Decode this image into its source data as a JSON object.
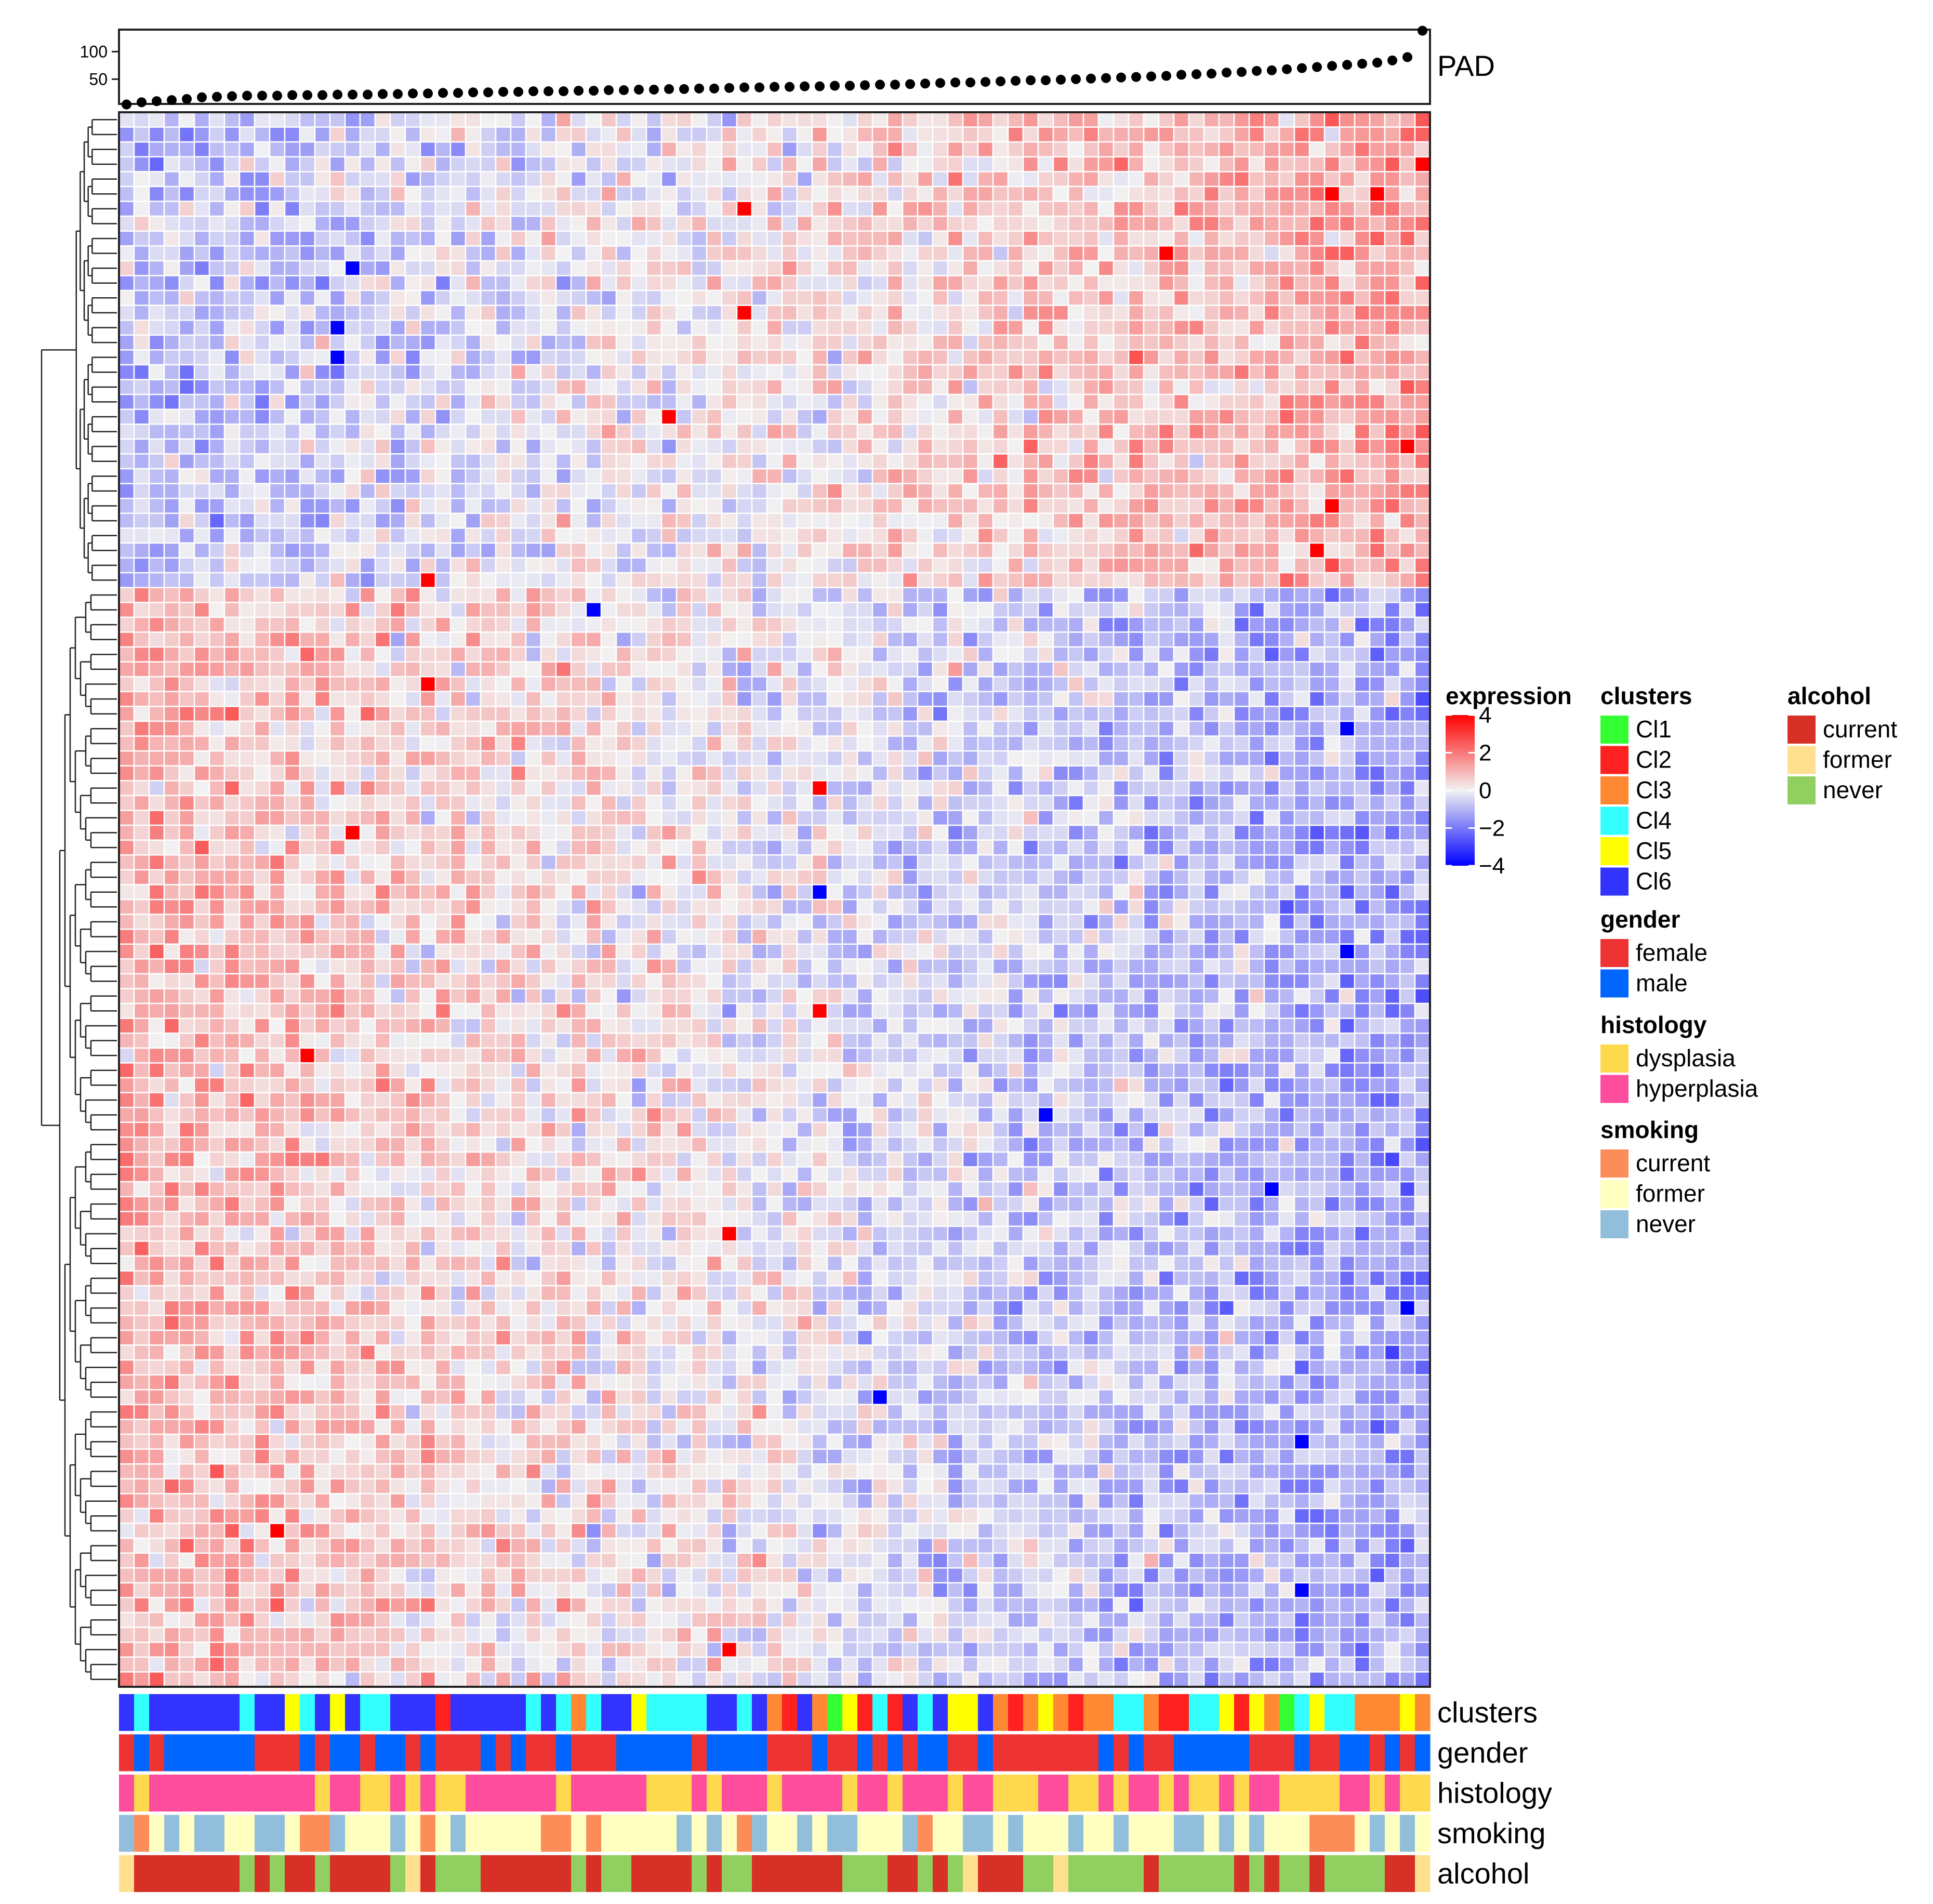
{
  "chart_data": {
    "type": "heatmap",
    "title": "",
    "n_rows": 106,
    "n_cols": 87,
    "color_scale": {
      "title": "expression",
      "min": -4,
      "max": 4,
      "ticks": [
        4,
        2,
        0,
        -2,
        -4
      ],
      "tick_labels": [
        "4",
        "2",
        "0",
        "−2",
        "−4"
      ],
      "low_color": "#0000ff",
      "mid_color": "#f2f2f2",
      "high_color": "#ff0000"
    },
    "row_blocks": [
      {
        "rows": 32,
        "description": "genes rising with PAD",
        "left_mean": -0.9,
        "right_mean": 1.3
      },
      {
        "rows": 74,
        "description": "genes falling with PAD",
        "left_mean": 1.1,
        "right_mean": -1.3
      }
    ],
    "strong_cells": [
      {
        "row": 3,
        "col": 86,
        "value": 4
      },
      {
        "row": 5,
        "col": 80,
        "value": 4
      },
      {
        "row": 5,
        "col": 83,
        "value": 4
      },
      {
        "row": 6,
        "col": 41,
        "value": 4
      },
      {
        "row": 9,
        "col": 69,
        "value": 4
      },
      {
        "row": 10,
        "col": 15,
        "value": -4
      },
      {
        "row": 13,
        "col": 41,
        "value": 4
      },
      {
        "row": 14,
        "col": 14,
        "value": -4
      },
      {
        "row": 16,
        "col": 14,
        "value": -4
      },
      {
        "row": 20,
        "col": 36,
        "value": 4
      },
      {
        "row": 22,
        "col": 85,
        "value": 4
      },
      {
        "row": 26,
        "col": 80,
        "value": 4
      },
      {
        "row": 29,
        "col": 79,
        "value": 4
      },
      {
        "row": 31,
        "col": 20,
        "value": 4
      },
      {
        "row": 33,
        "col": 31,
        "value": -4
      },
      {
        "row": 38,
        "col": 20,
        "value": 4
      },
      {
        "row": 41,
        "col": 81,
        "value": -4
      },
      {
        "row": 45,
        "col": 46,
        "value": 4
      },
      {
        "row": 48,
        "col": 15,
        "value": 4
      },
      {
        "row": 52,
        "col": 46,
        "value": -4
      },
      {
        "row": 56,
        "col": 81,
        "value": -4
      },
      {
        "row": 60,
        "col": 46,
        "value": 4
      },
      {
        "row": 63,
        "col": 12,
        "value": 4
      },
      {
        "row": 67,
        "col": 61,
        "value": -4
      },
      {
        "row": 72,
        "col": 76,
        "value": -4
      },
      {
        "row": 75,
        "col": 40,
        "value": 4
      },
      {
        "row": 80,
        "col": 85,
        "value": -4
      },
      {
        "row": 86,
        "col": 50,
        "value": -4
      },
      {
        "row": 89,
        "col": 78,
        "value": -4
      },
      {
        "row": 95,
        "col": 10,
        "value": 4
      },
      {
        "row": 99,
        "col": 78,
        "value": -4
      },
      {
        "row": 103,
        "col": 40,
        "value": 4
      }
    ],
    "top_annotation": {
      "label": "PAD",
      "type": "scatter",
      "y_ticks": [
        100,
        50
      ],
      "ylim": [
        5,
        140
      ],
      "values": [
        4,
        8,
        10,
        12,
        14,
        17,
        18,
        19,
        20,
        20,
        20,
        21,
        21,
        21,
        22,
        22,
        22,
        23,
        23,
        24,
        24,
        25,
        25,
        26,
        26,
        27,
        27,
        28,
        28,
        28,
        29,
        29,
        30,
        30,
        31,
        31,
        32,
        32,
        33,
        33,
        34,
        35,
        35,
        36,
        36,
        37,
        37,
        38,
        38,
        39,
        40,
        40,
        41,
        42,
        43,
        44,
        44,
        45,
        46,
        47,
        48,
        48,
        49,
        50,
        51,
        52,
        53,
        54,
        55,
        56,
        58,
        59,
        60,
        62,
        63,
        65,
        66,
        68,
        70,
        72,
        74,
        76,
        78,
        80,
        84,
        90,
        138
      ]
    },
    "annotation_tracks": [
      {
        "name": "clusters",
        "values": [
          "Cl6",
          "Cl4",
          "Cl6",
          "Cl6",
          "Cl6",
          "Cl6",
          "Cl6",
          "Cl6",
          "Cl4",
          "Cl6",
          "Cl6",
          "Cl5",
          "Cl4",
          "Cl6",
          "Cl5",
          "Cl6",
          "Cl4",
          "Cl4",
          "Cl6",
          "Cl6",
          "Cl6",
          "Cl2",
          "Cl6",
          "Cl6",
          "Cl6",
          "Cl6",
          "Cl6",
          "Cl4",
          "Cl6",
          "Cl4",
          "Cl3",
          "Cl4",
          "Cl6",
          "Cl6",
          "Cl5",
          "Cl4",
          "Cl4",
          "Cl4",
          "Cl4",
          "Cl6",
          "Cl6",
          "Cl4",
          "Cl6",
          "Cl3",
          "Cl2",
          "Cl6",
          "Cl3",
          "Cl1",
          "Cl5",
          "Cl2",
          "Cl4",
          "Cl2",
          "Cl6",
          "Cl4",
          "Cl6",
          "Cl5",
          "Cl5",
          "Cl6",
          "Cl3",
          "Cl2",
          "Cl3",
          "Cl5",
          "Cl3",
          "Cl2",
          "Cl3",
          "Cl3",
          "Cl4",
          "Cl4",
          "Cl3",
          "Cl2",
          "Cl2",
          "Cl4",
          "Cl4",
          "Cl5",
          "Cl2",
          "Cl5",
          "Cl3",
          "Cl1",
          "Cl4",
          "Cl5",
          "Cl4",
          "Cl4",
          "Cl3",
          "Cl3",
          "Cl3",
          "Cl5",
          "Cl3"
        ]
      },
      {
        "name": "gender",
        "values": [
          "female",
          "male",
          "female",
          "male",
          "male",
          "male",
          "male",
          "male",
          "male",
          "female",
          "female",
          "female",
          "male",
          "female",
          "male",
          "male",
          "female",
          "male",
          "male",
          "female",
          "male",
          "female",
          "female",
          "female",
          "male",
          "female",
          "male",
          "female",
          "female",
          "male",
          "female",
          "female",
          "female",
          "male",
          "male",
          "male",
          "male",
          "male",
          "female",
          "male",
          "male",
          "male",
          "male",
          "female",
          "female",
          "female",
          "male",
          "female",
          "female",
          "male",
          "female",
          "male",
          "female",
          "male",
          "male",
          "female",
          "female",
          "male",
          "female",
          "female",
          "female",
          "female",
          "female",
          "female",
          "female",
          "male",
          "female",
          "male",
          "female",
          "female",
          "male",
          "male",
          "male",
          "male",
          "male",
          "female",
          "female",
          "female",
          "male",
          "female",
          "female",
          "male",
          "male",
          "female",
          "male",
          "female",
          "male"
        ]
      },
      {
        "name": "histology",
        "values": [
          "hyperplasia",
          "dysplasia",
          "hyperplasia",
          "hyperplasia",
          "hyperplasia",
          "hyperplasia",
          "hyperplasia",
          "hyperplasia",
          "hyperplasia",
          "hyperplasia",
          "hyperplasia",
          "hyperplasia",
          "hyperplasia",
          "dysplasia",
          "hyperplasia",
          "hyperplasia",
          "dysplasia",
          "dysplasia",
          "hyperplasia",
          "dysplasia",
          "hyperplasia",
          "dysplasia",
          "dysplasia",
          "hyperplasia",
          "hyperplasia",
          "hyperplasia",
          "hyperplasia",
          "hyperplasia",
          "hyperplasia",
          "dysplasia",
          "hyperplasia",
          "hyperplasia",
          "hyperplasia",
          "hyperplasia",
          "hyperplasia",
          "dysplasia",
          "dysplasia",
          "dysplasia",
          "hyperplasia",
          "dysplasia",
          "hyperplasia",
          "hyperplasia",
          "hyperplasia",
          "dysplasia",
          "hyperplasia",
          "hyperplasia",
          "hyperplasia",
          "hyperplasia",
          "dysplasia",
          "hyperplasia",
          "hyperplasia",
          "dysplasia",
          "hyperplasia",
          "hyperplasia",
          "hyperplasia",
          "dysplasia",
          "hyperplasia",
          "hyperplasia",
          "dysplasia",
          "dysplasia",
          "dysplasia",
          "hyperplasia",
          "hyperplasia",
          "dysplasia",
          "dysplasia",
          "hyperplasia",
          "dysplasia",
          "hyperplasia",
          "hyperplasia",
          "dysplasia",
          "hyperplasia",
          "dysplasia",
          "dysplasia",
          "hyperplasia",
          "dysplasia",
          "hyperplasia",
          "hyperplasia",
          "dysplasia",
          "dysplasia",
          "dysplasia",
          "dysplasia",
          "hyperplasia",
          "hyperplasia",
          "dysplasia",
          "hyperplasia",
          "dysplasia",
          "dysplasia"
        ]
      },
      {
        "name": "smoking",
        "values": [
          "never",
          "current",
          "former",
          "never",
          "former",
          "never",
          "never",
          "former",
          "former",
          "never",
          "never",
          "former",
          "current",
          "current",
          "never",
          "former",
          "former",
          "former",
          "never",
          "former",
          "current",
          "former",
          "never",
          "former",
          "former",
          "former",
          "former",
          "former",
          "current",
          "current",
          "former",
          "current",
          "former",
          "former",
          "former",
          "former",
          "former",
          "never",
          "former",
          "never",
          "former",
          "current",
          "never",
          "former",
          "former",
          "never",
          "former",
          "never",
          "never",
          "former",
          "former",
          "former",
          "never",
          "current",
          "former",
          "former",
          "never",
          "never",
          "former",
          "never",
          "former",
          "former",
          "former",
          "never",
          "former",
          "former",
          "never",
          "former",
          "former",
          "former",
          "never",
          "never",
          "former",
          "never",
          "former",
          "never",
          "former",
          "former",
          "former",
          "current",
          "current",
          "current",
          "former",
          "never",
          "former",
          "never",
          "former"
        ]
      },
      {
        "name": "alcohol",
        "values": [
          "former",
          "current",
          "current",
          "current",
          "current",
          "current",
          "current",
          "current",
          "never",
          "current",
          "never",
          "current",
          "current",
          "never",
          "current",
          "current",
          "current",
          "current",
          "never",
          "former",
          "current",
          "never",
          "never",
          "never",
          "current",
          "current",
          "current",
          "current",
          "current",
          "current",
          "never",
          "current",
          "never",
          "never",
          "current",
          "current",
          "current",
          "current",
          "never",
          "current",
          "never",
          "never",
          "current",
          "current",
          "current",
          "current",
          "current",
          "current",
          "never",
          "never",
          "never",
          "current",
          "current",
          "never",
          "current",
          "never",
          "former",
          "current",
          "current",
          "current",
          "never",
          "never",
          "former",
          "never",
          "never",
          "never",
          "never",
          "never",
          "current",
          "never",
          "never",
          "never",
          "never",
          "never",
          "current",
          "never",
          "current",
          "never",
          "never",
          "current",
          "never",
          "never",
          "never",
          "never",
          "current",
          "current",
          "former"
        ]
      }
    ],
    "legends": [
      {
        "title": "clusters",
        "items": [
          {
            "label": "Cl1",
            "color": "#33ff33"
          },
          {
            "label": "Cl2",
            "color": "#ff2020"
          },
          {
            "label": "Cl3",
            "color": "#ff8833"
          },
          {
            "label": "Cl4",
            "color": "#33ffff"
          },
          {
            "label": "Cl5",
            "color": "#ffff00"
          },
          {
            "label": "Cl6",
            "color": "#3333ff"
          }
        ]
      },
      {
        "title": "gender",
        "items": [
          {
            "label": "female",
            "color": "#ee3333"
          },
          {
            "label": "male",
            "color": "#0066ff"
          }
        ]
      },
      {
        "title": "histology",
        "items": [
          {
            "label": "dysplasia",
            "color": "#ffd94d"
          },
          {
            "label": "hyperplasia",
            "color": "#ff4d9e"
          }
        ]
      },
      {
        "title": "smoking",
        "items": [
          {
            "label": "current",
            "color": "#fc8d59"
          },
          {
            "label": "former",
            "color": "#ffffbf"
          },
          {
            "label": "never",
            "color": "#91bfdb"
          }
        ]
      },
      {
        "title": "alcohol",
        "items": [
          {
            "label": "current",
            "color": "#d73027"
          },
          {
            "label": "former",
            "color": "#fee090"
          },
          {
            "label": "never",
            "color": "#91cf60"
          }
        ]
      }
    ]
  }
}
